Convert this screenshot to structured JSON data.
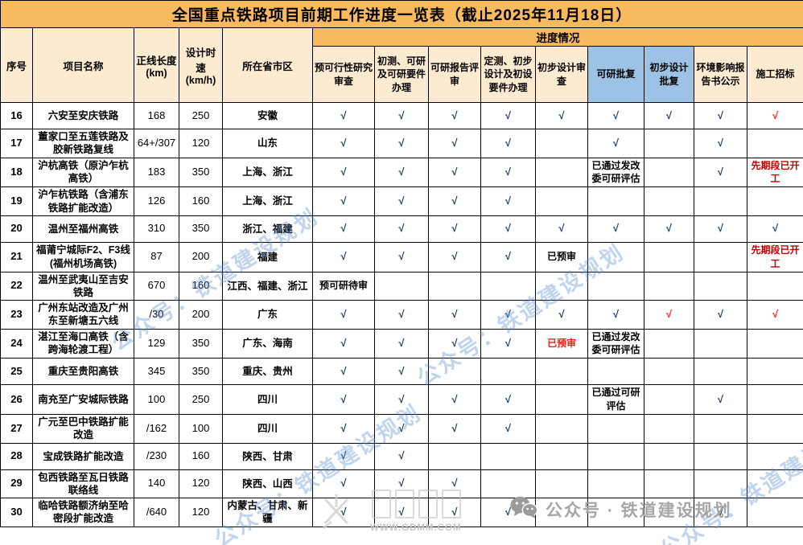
{
  "title": "全国重点铁路项目前期工作进度一览表（截止2025年11月18日）",
  "colors": {
    "title_bg": "#F9BA5F",
    "header_bg": "#FDEBD1",
    "blue_bg": "#9CC2E5",
    "check": "#17375D",
    "red": "#FF1A1A",
    "dark_red": "#C00000"
  },
  "table": {
    "header": {
      "no": "序号",
      "name": "项目名称",
      "length": "正线长度 (km)",
      "speed": "设计时速 (km/h)",
      "region": "所在省市区",
      "progress_group": "进度情况"
    },
    "progress_columns": [
      {
        "label": "预可行性研究审查",
        "blue": false
      },
      {
        "label": "初测、可研及可研要件办理",
        "blue": false
      },
      {
        "label": "可研报告评审",
        "blue": false
      },
      {
        "label": "定测、初步设计及初设要件办理",
        "blue": false
      },
      {
        "label": "初步设计审查",
        "blue": false
      },
      {
        "label": "可研批复",
        "blue": true
      },
      {
        "label": "初步设计批复",
        "blue": true
      },
      {
        "label": "环境影响报告书公示",
        "blue": false
      },
      {
        "label": "施工招标",
        "blue": false
      }
    ],
    "rows": [
      {
        "no": "16",
        "name": "六安至安庆铁路",
        "length": "168",
        "speed": "250",
        "region": "安徽",
        "cells": [
          {
            "t": "√",
            "s": "check"
          },
          {
            "t": "√",
            "s": "check"
          },
          {
            "t": "√",
            "s": "check"
          },
          {
            "t": "√",
            "s": "check"
          },
          {
            "t": "√",
            "s": "check"
          },
          {
            "t": "√",
            "s": "check"
          },
          {
            "t": "√",
            "s": "check"
          },
          {
            "t": "√",
            "s": "check"
          },
          {
            "t": "√",
            "s": "check-red"
          }
        ]
      },
      {
        "no": "17",
        "name": "董家口至五莲铁路及胶新铁路复线",
        "length": "64+/307",
        "speed": "120",
        "region": "山东",
        "cells": [
          {
            "t": "√",
            "s": "check"
          },
          {
            "t": "√",
            "s": "check"
          },
          {
            "t": "√",
            "s": "check"
          },
          {
            "t": "√",
            "s": "check"
          },
          {
            "t": ""
          },
          {
            "t": "√",
            "s": "check"
          },
          {
            "t": ""
          },
          {
            "t": "√",
            "s": "check"
          },
          {
            "t": ""
          }
        ]
      },
      {
        "no": "18",
        "name": "沪杭高铁（原沪乍杭高铁）",
        "length": "183",
        "speed": "350",
        "region": "上海、浙江",
        "cells": [
          {
            "t": "√",
            "s": "check"
          },
          {
            "t": "√",
            "s": "check"
          },
          {
            "t": "√",
            "s": "check"
          },
          {
            "t": "√",
            "s": "check"
          },
          {
            "t": ""
          },
          {
            "t": "已通过发改委可研评估",
            "s": "note"
          },
          {
            "t": ""
          },
          {
            "t": "√",
            "s": "check"
          },
          {
            "t": "先期段已开工",
            "s": "note-darkred"
          }
        ]
      },
      {
        "no": "19",
        "name": "沪乍杭铁路（含浦东铁路扩能改造）",
        "length": "126",
        "speed": "160",
        "region": "上海、浙江",
        "cells": [
          {
            "t": "√",
            "s": "check"
          },
          {
            "t": "√",
            "s": "check"
          },
          {
            "t": "√",
            "s": "check"
          },
          {
            "t": "√",
            "s": "check"
          },
          {
            "t": ""
          },
          {
            "t": ""
          },
          {
            "t": ""
          },
          {
            "t": ""
          },
          {
            "t": ""
          }
        ]
      },
      {
        "no": "20",
        "name": "温州至福州高铁",
        "length": "310",
        "speed": "350",
        "region": "浙江、福建",
        "cells": [
          {
            "t": "√",
            "s": "check"
          },
          {
            "t": "√",
            "s": "check"
          },
          {
            "t": "√",
            "s": "check"
          },
          {
            "t": "√",
            "s": "check"
          },
          {
            "t": "√",
            "s": "check"
          },
          {
            "t": "√",
            "s": "check"
          },
          {
            "t": "√",
            "s": "check"
          },
          {
            "t": "√",
            "s": "check"
          },
          {
            "t": "√",
            "s": "check"
          }
        ]
      },
      {
        "no": "21",
        "name": "福莆宁城际F2、F3线(福州机场高铁)",
        "length": "87",
        "speed": "200",
        "region": "福建",
        "cells": [
          {
            "t": "√",
            "s": "check"
          },
          {
            "t": "√",
            "s": "check"
          },
          {
            "t": "√",
            "s": "check"
          },
          {
            "t": "√",
            "s": "check"
          },
          {
            "t": "已预审",
            "s": "note"
          },
          {
            "t": ""
          },
          {
            "t": ""
          },
          {
            "t": ""
          },
          {
            "t": "先期段已开工",
            "s": "note-darkred"
          }
        ]
      },
      {
        "no": "22",
        "name": "温州至武夷山至吉安铁路",
        "length": "670",
        "speed": "160",
        "region": "江西、福建、浙江",
        "cells": [
          {
            "t": "预可研待审",
            "s": "note"
          },
          {
            "t": ""
          },
          {
            "t": ""
          },
          {
            "t": ""
          },
          {
            "t": ""
          },
          {
            "t": ""
          },
          {
            "t": ""
          },
          {
            "t": ""
          },
          {
            "t": ""
          }
        ]
      },
      {
        "no": "23",
        "name": "广州东站改造及广州东至新塘五六线",
        "length": "/30",
        "speed": "200",
        "region": "广东",
        "cells": [
          {
            "t": "√",
            "s": "check"
          },
          {
            "t": "√",
            "s": "check"
          },
          {
            "t": "√",
            "s": "check"
          },
          {
            "t": "√",
            "s": "check"
          },
          {
            "t": "√",
            "s": "check"
          },
          {
            "t": "√",
            "s": "check"
          },
          {
            "t": "√",
            "s": "check-red"
          },
          {
            "t": "√",
            "s": "check"
          },
          {
            "t": "√",
            "s": "check-red"
          }
        ]
      },
      {
        "no": "24",
        "name": "湛江至海口高铁（含跨海轮渡工程）",
        "length": "129",
        "speed": "350",
        "region": "广东、海南",
        "cells": [
          {
            "t": "√",
            "s": "check"
          },
          {
            "t": "√",
            "s": "check"
          },
          {
            "t": "√",
            "s": "check"
          },
          {
            "t": "√",
            "s": "check"
          },
          {
            "t": "已预审",
            "s": "note-red"
          },
          {
            "t": "已通过发改委可研评估",
            "s": "note"
          },
          {
            "t": ""
          },
          {
            "t": ""
          },
          {
            "t": ""
          }
        ]
      },
      {
        "no": "25",
        "name": "重庆至贵阳高铁",
        "length": "345",
        "speed": "350",
        "region": "重庆、贵州",
        "cells": [
          {
            "t": "√",
            "s": "check"
          },
          {
            "t": "√",
            "s": "check"
          },
          {
            "t": ""
          },
          {
            "t": ""
          },
          {
            "t": ""
          },
          {
            "t": ""
          },
          {
            "t": ""
          },
          {
            "t": ""
          },
          {
            "t": ""
          }
        ]
      },
      {
        "no": "26",
        "name": "南充至广安城际铁路",
        "length": "100",
        "speed": "250",
        "region": "四川",
        "cells": [
          {
            "t": "√",
            "s": "check"
          },
          {
            "t": "√",
            "s": "check"
          },
          {
            "t": "√",
            "s": "check"
          },
          {
            "t": "√",
            "s": "check"
          },
          {
            "t": ""
          },
          {
            "t": "已通过可研评估",
            "s": "note"
          },
          {
            "t": ""
          },
          {
            "t": "√",
            "s": "check"
          },
          {
            "t": ""
          }
        ]
      },
      {
        "no": "27",
        "name": "广元至巴中铁路扩能改造",
        "length": "/162",
        "speed": "100",
        "region": "四川",
        "cells": [
          {
            "t": "√",
            "s": "check"
          },
          {
            "t": "√",
            "s": "check"
          },
          {
            "t": "√",
            "s": "check"
          },
          {
            "t": "√",
            "s": "check"
          },
          {
            "t": ""
          },
          {
            "t": ""
          },
          {
            "t": ""
          },
          {
            "t": ""
          },
          {
            "t": ""
          }
        ]
      },
      {
        "no": "28",
        "name": "宝成铁路扩能改造",
        "length": "/230",
        "speed": "160",
        "region": "陕西、甘肃",
        "cells": [
          {
            "t": "√",
            "s": "check"
          },
          {
            "t": "√",
            "s": "check"
          },
          {
            "t": ""
          },
          {
            "t": ""
          },
          {
            "t": ""
          },
          {
            "t": ""
          },
          {
            "t": ""
          },
          {
            "t": ""
          },
          {
            "t": ""
          }
        ]
      },
      {
        "no": "29",
        "name": "包西铁路至瓦日铁路联络线",
        "length": "140",
        "speed": "120",
        "region": "陕西、山西",
        "cells": [
          {
            "t": "√",
            "s": "check"
          },
          {
            "t": "√",
            "s": "check"
          },
          {
            "t": "√",
            "s": "check"
          },
          {
            "t": ""
          },
          {
            "t": ""
          },
          {
            "t": ""
          },
          {
            "t": ""
          },
          {
            "t": ""
          },
          {
            "t": ""
          }
        ]
      },
      {
        "no": "30",
        "name": "临哈铁路额济纳至哈密段扩能改造",
        "length": "/640",
        "speed": "120",
        "region": "内蒙古、甘肃、新疆",
        "cells": [
          {
            "t": "√",
            "s": "check"
          },
          {
            "t": "√",
            "s": "check"
          },
          {
            "t": "√",
            "s": "check"
          },
          {
            "t": "√",
            "s": "check"
          },
          {
            "t": ""
          },
          {
            "t": ""
          },
          {
            "t": ""
          },
          {
            "t": "√",
            "s": "check"
          },
          {
            "t": ""
          }
        ]
      }
    ]
  },
  "watermarks": {
    "diagonal_text": "公众号：铁道建设规划",
    "account_text": "公众号 · 铁道建设规划",
    "site_text": "WWW.GDMM.COM"
  }
}
